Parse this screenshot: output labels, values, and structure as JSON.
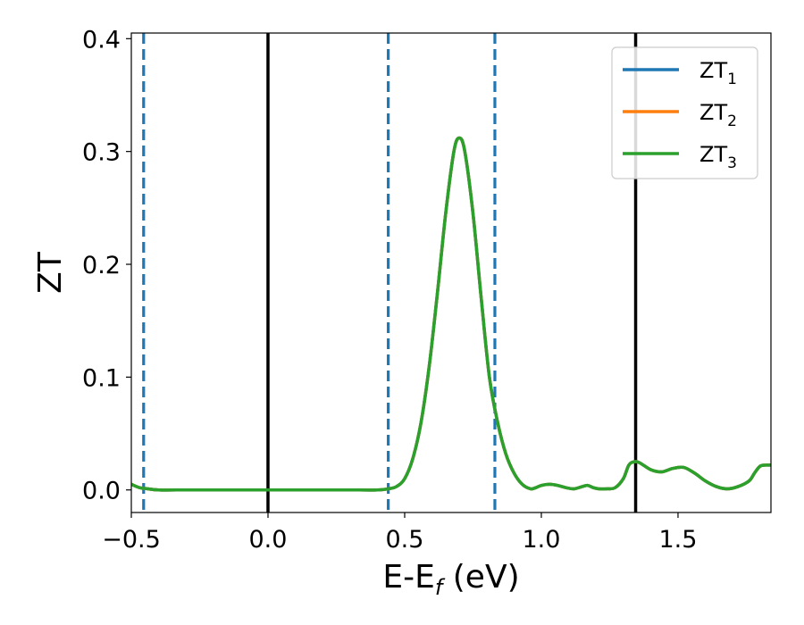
{
  "chart_data": {
    "type": "line",
    "xlabel": "E-E",
    "xlabel_sub": "f",
    "xlabel_unit": " (eV)",
    "ylabel": "ZT",
    "xlim": [
      -0.5,
      1.84
    ],
    "ylim": [
      -0.02,
      0.405
    ],
    "x_ticks": [
      {
        "value": -0.5,
        "label": "−0.5"
      },
      {
        "value": 0.0,
        "label": "0.0"
      },
      {
        "value": 0.5,
        "label": "0.5"
      },
      {
        "value": 1.0,
        "label": "1.0"
      },
      {
        "value": 1.5,
        "label": "1.5"
      }
    ],
    "y_ticks": [
      {
        "value": 0.0,
        "label": "0.0"
      },
      {
        "value": 0.1,
        "label": "0.1"
      },
      {
        "value": 0.2,
        "label": "0.2"
      },
      {
        "value": 0.3,
        "label": "0.3"
      },
      {
        "value": 0.4,
        "label": "0.4"
      }
    ],
    "grid": false,
    "legend_position": "top-right",
    "series": [
      {
        "name": "ZT",
        "sub": "1",
        "color": "#1f77b4"
      },
      {
        "name": "ZT",
        "sub": "2",
        "color": "#ff7f0e"
      },
      {
        "name": "ZT",
        "sub": "3",
        "color": "#2ca02c"
      }
    ],
    "curve": {
      "x": [
        -0.5,
        -0.47,
        -0.44,
        -0.4,
        -0.3,
        -0.2,
        -0.1,
        0.0,
        0.1,
        0.2,
        0.3,
        0.4,
        0.44,
        0.47,
        0.5,
        0.53,
        0.56,
        0.59,
        0.62,
        0.65,
        0.68,
        0.7,
        0.72,
        0.75,
        0.78,
        0.81,
        0.84,
        0.87,
        0.9,
        0.93,
        0.96,
        0.98,
        1.0,
        1.03,
        1.06,
        1.09,
        1.12,
        1.15,
        1.17,
        1.19,
        1.21,
        1.24,
        1.27,
        1.3,
        1.32,
        1.34,
        1.36,
        1.4,
        1.44,
        1.48,
        1.52,
        1.56,
        1.6,
        1.64,
        1.68,
        1.72,
        1.76,
        1.78,
        1.8,
        1.82,
        1.84
      ],
      "y": [
        0.005,
        0.002,
        0.001,
        0.0,
        0.0,
        0.0,
        0.0,
        0.0,
        0.0,
        0.0,
        0.0,
        0.0,
        0.001,
        0.003,
        0.01,
        0.028,
        0.06,
        0.11,
        0.175,
        0.245,
        0.3,
        0.312,
        0.3,
        0.245,
        0.17,
        0.1,
        0.06,
        0.032,
        0.015,
        0.005,
        0.001,
        0.002,
        0.004,
        0.005,
        0.004,
        0.002,
        0.001,
        0.003,
        0.004,
        0.002,
        0.001,
        0.001,
        0.002,
        0.01,
        0.022,
        0.025,
        0.024,
        0.018,
        0.016,
        0.019,
        0.02,
        0.015,
        0.008,
        0.003,
        0.001,
        0.003,
        0.008,
        0.015,
        0.021,
        0.022,
        0.022
      ],
      "colors": [
        "#1f77b4",
        "#ff7f0e",
        "#2ca02c"
      ]
    },
    "vlines": [
      {
        "x": -0.455,
        "style": "dashed",
        "color": "#1f77b4"
      },
      {
        "x": 0.0,
        "style": "solid",
        "color": "#000000"
      },
      {
        "x": 0.44,
        "style": "dashed",
        "color": "#1f77b4"
      },
      {
        "x": 0.83,
        "style": "dashed",
        "color": "#1f77b4"
      },
      {
        "x": 1.345,
        "style": "solid",
        "color": "#000000"
      }
    ]
  }
}
